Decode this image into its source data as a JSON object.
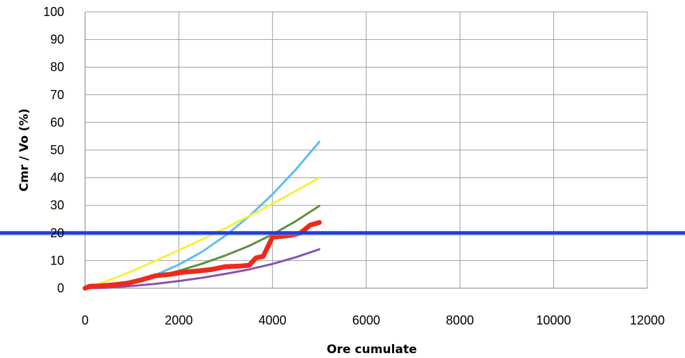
{
  "chart_data": {
    "type": "line",
    "title": "",
    "xlabel": "Ore cumulate",
    "ylabel": "Cmr / Vo  (%)",
    "xlim": [
      0,
      12000
    ],
    "ylim": [
      0,
      100
    ],
    "xticks": [
      0,
      2000,
      4000,
      6000,
      8000,
      10000,
      12000
    ],
    "yticks": [
      0,
      10,
      20,
      30,
      40,
      50,
      60,
      70,
      80,
      90,
      100
    ],
    "grid": true,
    "legend": "none",
    "reference_line": {
      "y": 20,
      "color": "#1f3fe0"
    },
    "series": [
      {
        "color": "#5bbcf0",
        "x": [
          0,
          500,
          1000,
          1500,
          2000,
          2500,
          3000,
          3500,
          4000,
          4500,
          5000
        ],
        "y": [
          0,
          0.5,
          2.1,
          4.8,
          8.5,
          13.2,
          19.1,
          26.0,
          34.0,
          43.0,
          53.0
        ]
      },
      {
        "color": "#f5f03a",
        "x": [
          0,
          500,
          1000,
          1500,
          2000,
          2500,
          3000,
          3500,
          4000,
          4500,
          5000
        ],
        "y": [
          0,
          2.8,
          6.2,
          9.9,
          13.7,
          17.7,
          21.8,
          26.1,
          30.6,
          35.2,
          40.0
        ]
      },
      {
        "color": "#5f8f3a",
        "x": [
          0,
          500,
          1000,
          1500,
          2000,
          2500,
          3000,
          3500,
          4000,
          4500,
          5000
        ],
        "y": [
          0,
          0.9,
          2.3,
          4.1,
          6.3,
          8.9,
          11.9,
          15.3,
          19.5,
          24.3,
          29.8
        ]
      },
      {
        "color": "#8a4fb5",
        "x": [
          0,
          500,
          1000,
          1500,
          2000,
          2500,
          3000,
          3500,
          4000,
          4500,
          5000
        ],
        "y": [
          0,
          0.2,
          0.8,
          1.6,
          2.6,
          3.8,
          5.2,
          6.8,
          8.8,
          11.2,
          14.1
        ]
      },
      {
        "color": "#ee2a1a",
        "x": [
          0,
          100,
          300,
          600,
          900,
          1200,
          1500,
          1800,
          2100,
          2400,
          2700,
          3000,
          3300,
          3500,
          3650,
          3800,
          4000,
          4200,
          4400,
          4600,
          4800,
          5000
        ],
        "y": [
          0,
          0.7,
          0.8,
          1.2,
          1.8,
          3.0,
          4.5,
          5.0,
          5.8,
          6.2,
          6.8,
          7.8,
          8.0,
          8.3,
          11.0,
          11.5,
          18.5,
          18.8,
          19.2,
          20.0,
          22.8,
          23.8
        ]
      }
    ]
  }
}
